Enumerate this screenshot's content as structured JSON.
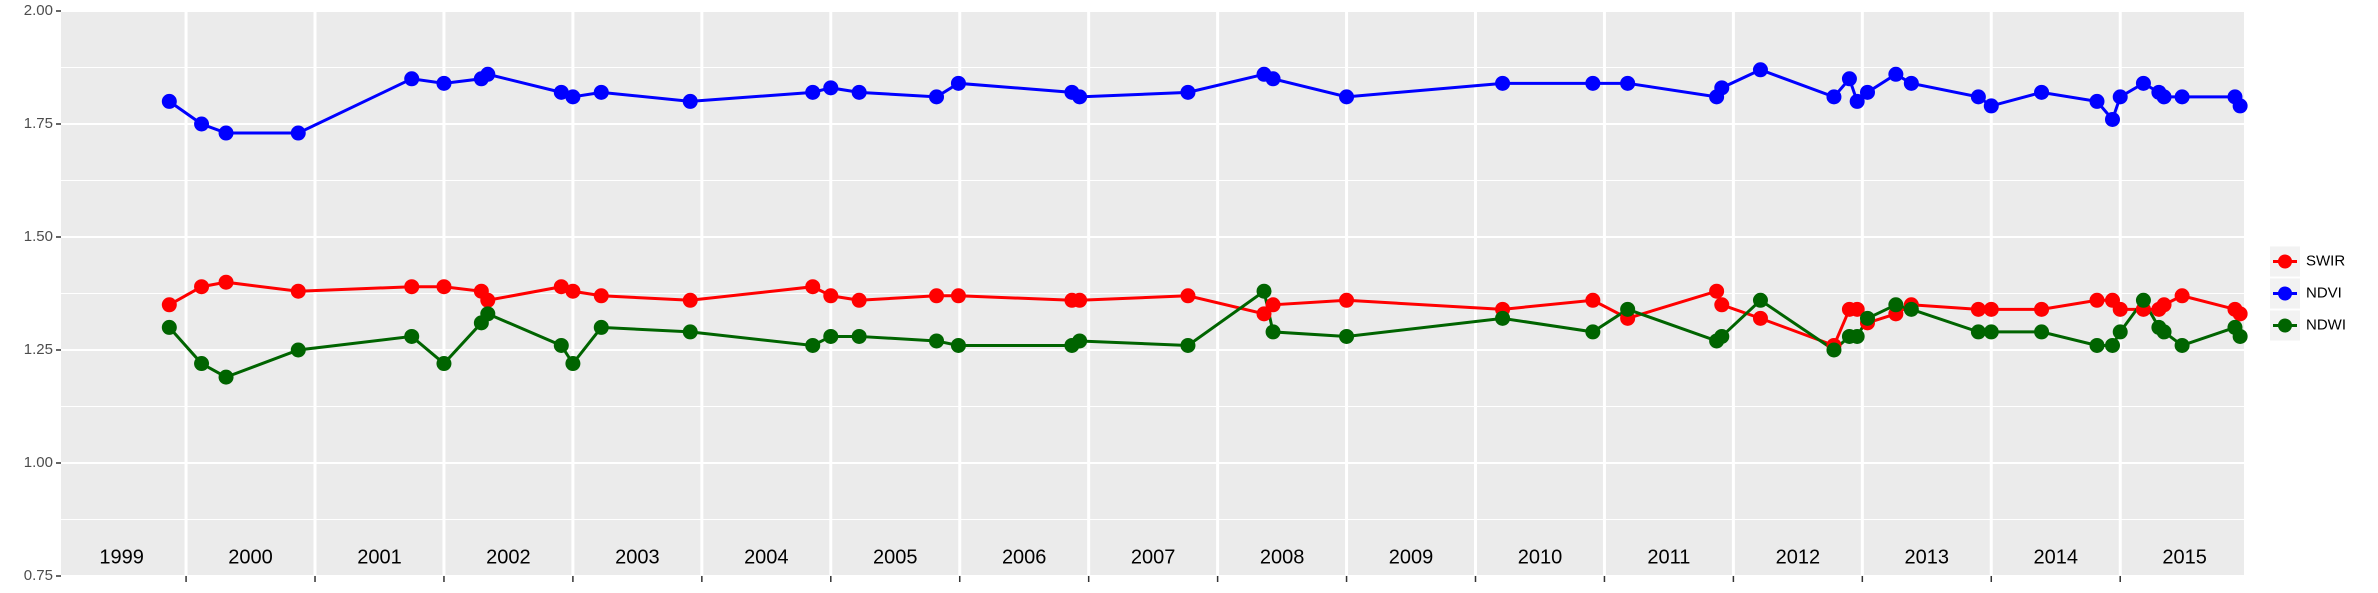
{
  "chart_data": {
    "type": "line",
    "x": [
      1999.87,
      2000.12,
      2000.31,
      2000.87,
      2001.75,
      2002.0,
      2002.29,
      2002.34,
      2002.91,
      2003.0,
      2003.22,
      2003.91,
      2004.86,
      2005.0,
      2005.22,
      2005.82,
      2005.99,
      2006.87,
      2006.93,
      2007.77,
      2008.36,
      2008.43,
      2009.0,
      2010.21,
      2010.91,
      2011.18,
      2011.87,
      2011.91,
      2012.21,
      2012.78,
      2012.9,
      2012.96,
      2013.04,
      2013.26,
      2013.38,
      2013.9,
      2014.0,
      2014.39,
      2014.82,
      2014.94,
      2015.0,
      2015.18,
      2015.3,
      2015.34,
      2015.48,
      2015.89,
      2015.93
    ],
    "series": [
      {
        "name": "SWIR",
        "color": "#ff0000",
        "values": [
          1.35,
          1.39,
          1.4,
          1.38,
          1.39,
          1.39,
          1.38,
          1.36,
          1.39,
          1.38,
          1.37,
          1.36,
          1.39,
          1.37,
          1.36,
          1.37,
          1.37,
          1.36,
          1.36,
          1.37,
          1.33,
          1.35,
          1.36,
          1.34,
          1.36,
          1.32,
          1.38,
          1.35,
          1.32,
          1.26,
          1.34,
          1.34,
          1.31,
          1.33,
          1.35,
          1.34,
          1.34,
          1.34,
          1.36,
          1.36,
          1.34,
          1.34,
          1.34,
          1.35,
          1.37,
          1.34,
          1.33
        ]
      },
      {
        "name": "NDVI",
        "color": "#0000ff",
        "values": [
          1.8,
          1.75,
          1.73,
          1.73,
          1.85,
          1.84,
          1.85,
          1.86,
          1.82,
          1.81,
          1.82,
          1.8,
          1.82,
          1.83,
          1.82,
          1.81,
          1.84,
          1.82,
          1.81,
          1.82,
          1.86,
          1.85,
          1.81,
          1.84,
          1.84,
          1.84,
          1.81,
          1.83,
          1.87,
          1.81,
          1.85,
          1.8,
          1.82,
          1.86,
          1.84,
          1.81,
          1.79,
          1.82,
          1.8,
          1.76,
          1.81,
          1.84,
          1.82,
          1.81,
          1.81,
          1.81,
          1.79
        ]
      },
      {
        "name": "NDWI",
        "color": "#006400",
        "values": [
          1.3,
          1.22,
          1.19,
          1.25,
          1.28,
          1.22,
          1.31,
          1.33,
          1.26,
          1.22,
          1.3,
          1.29,
          1.26,
          1.28,
          1.28,
          1.27,
          1.26,
          1.26,
          1.27,
          1.26,
          1.38,
          1.29,
          1.28,
          1.32,
          1.29,
          1.34,
          1.27,
          1.28,
          1.36,
          1.25,
          1.28,
          1.28,
          1.32,
          1.35,
          1.34,
          1.29,
          1.29,
          1.29,
          1.26,
          1.26,
          1.29,
          1.36,
          1.3,
          1.29,
          1.26,
          1.3,
          1.28
        ]
      }
    ],
    "xlim": [
      1999.03,
      2015.96
    ],
    "xticks": [
      {
        "value": 1999.5,
        "label": "1999"
      },
      {
        "value": 2000.5,
        "label": "2000"
      },
      {
        "value": 2001.5,
        "label": "2001"
      },
      {
        "value": 2002.5,
        "label": "2002"
      },
      {
        "value": 2003.5,
        "label": "2003"
      },
      {
        "value": 2004.5,
        "label": "2004"
      },
      {
        "value": 2005.5,
        "label": "2005"
      },
      {
        "value": 2006.5,
        "label": "2006"
      },
      {
        "value": 2007.5,
        "label": "2007"
      },
      {
        "value": 2008.5,
        "label": "2008"
      },
      {
        "value": 2009.5,
        "label": "2009"
      },
      {
        "value": 2010.5,
        "label": "2010"
      },
      {
        "value": 2011.5,
        "label": "2011"
      },
      {
        "value": 2012.5,
        "label": "2012"
      },
      {
        "value": 2013.5,
        "label": "2013"
      },
      {
        "value": 2014.5,
        "label": "2014"
      },
      {
        "value": 2015.5,
        "label": "2015"
      }
    ],
    "xgrid": [
      2000,
      2001,
      2002,
      2003,
      2004,
      2005,
      2006,
      2007,
      2008,
      2009,
      2010,
      2011,
      2012,
      2013,
      2014,
      2015
    ],
    "ylim": [
      0.75,
      2.0
    ],
    "yticks": [
      0.75,
      {
        "value": 1.0,
        "label": "1.00"
      },
      1.25,
      {
        "value": 1.5,
        "label": "1.50"
      },
      1.75,
      {
        "value": 2.0,
        "label": "2.00"
      }
    ],
    "grid": true,
    "legend": "right"
  }
}
